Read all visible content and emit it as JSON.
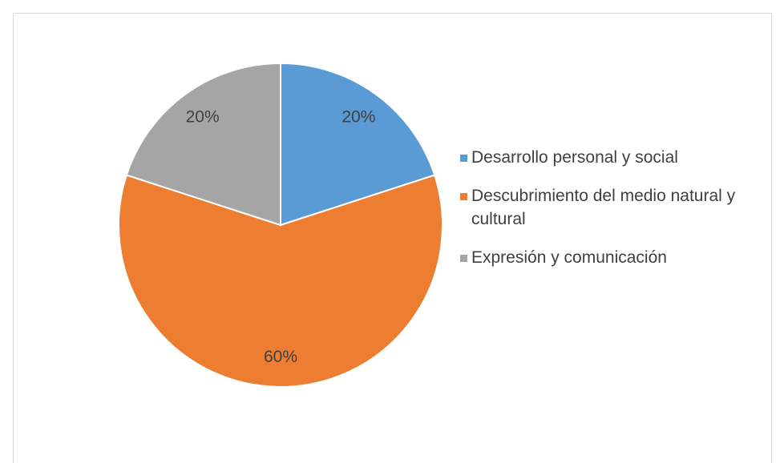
{
  "chart_data": {
    "type": "pie",
    "categories": [
      "Desarrollo personal y social",
      "Descubrimiento del medio natural y cultural",
      "Expresión y comunicación"
    ],
    "values": [
      20,
      60,
      20
    ],
    "value_labels": [
      "20%",
      "60%",
      "20%"
    ],
    "colors": [
      "#5b9bd5",
      "#ed7d31",
      "#a5a5a5"
    ],
    "legend": "right"
  }
}
